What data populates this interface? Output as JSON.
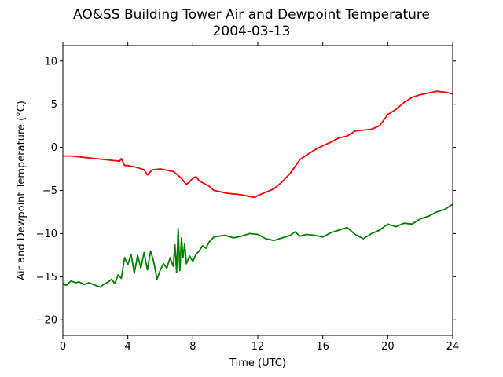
{
  "chart_data": {
    "type": "line",
    "title": "AO&SS Building Tower Air and Dewpoint Temperature",
    "subtitle": "2004-03-13",
    "xlabel": "Time (UTC)",
    "ylabel": "Air and Dewpoint Temperature (°C)",
    "xlim": [
      0,
      24
    ],
    "ylim": [
      -21.8,
      11.8
    ],
    "xticks": [
      0,
      4,
      8,
      12,
      16,
      20,
      24
    ],
    "xtick_labels": [
      "0",
      "4",
      "8",
      "12",
      "16",
      "20",
      "24"
    ],
    "yticks": [
      10,
      5,
      0,
      -5,
      -10,
      -15,
      -20
    ],
    "ytick_labels": [
      "10",
      "5",
      "0",
      "−5",
      "−10",
      "−15",
      "−20"
    ],
    "grid": false,
    "legend": "none",
    "series": [
      {
        "color": "#ff0000",
        "x": [
          0,
          0.5,
          1,
          1.5,
          2,
          2.5,
          3,
          3.5,
          3.6,
          3.8,
          4,
          4.5,
          5,
          5.2,
          5.5,
          6,
          6.5,
          6.8,
          7,
          7.3,
          7.6,
          7.8,
          8,
          8.2,
          8.4,
          8.7,
          9,
          9.3,
          9.6,
          10,
          10.5,
          11,
          11.5,
          11.8,
          12,
          12.5,
          13,
          13.5,
          14,
          14.3,
          14.6,
          15,
          15.5,
          16,
          16.5,
          16.8,
          17,
          17.5,
          18,
          18.5,
          19,
          19.5,
          20,
          20.5,
          21,
          21.5,
          22,
          22.5,
          23,
          23.5,
          24
        ],
        "y": [
          -1.0,
          -1.0,
          -1.1,
          -1.2,
          -1.3,
          -1.4,
          -1.5,
          -1.6,
          -1.3,
          -2.1,
          -2.1,
          -2.3,
          -2.6,
          -3.2,
          -2.6,
          -2.5,
          -2.7,
          -2.8,
          -3.1,
          -3.6,
          -4.3,
          -4.0,
          -3.6,
          -3.4,
          -3.9,
          -4.2,
          -4.5,
          -5.0,
          -5.1,
          -5.3,
          -5.4,
          -5.5,
          -5.7,
          -5.8,
          -5.6,
          -5.2,
          -4.8,
          -4.0,
          -3.0,
          -2.2,
          -1.4,
          -0.9,
          -0.3,
          0.2,
          0.6,
          0.9,
          1.1,
          1.3,
          1.9,
          2.0,
          2.1,
          2.5,
          3.8,
          4.4,
          5.2,
          5.8,
          6.1,
          6.3,
          6.5,
          6.4,
          6.2
        ]
      },
      {
        "color": "#008000",
        "x": [
          0,
          0.2,
          0.5,
          0.8,
          1,
          1.3,
          1.6,
          2,
          2.3,
          2.5,
          2.8,
          3,
          3.2,
          3.4,
          3.6,
          3.8,
          4,
          4.2,
          4.4,
          4.6,
          4.8,
          5,
          5.2,
          5.4,
          5.6,
          5.8,
          6,
          6.2,
          6.4,
          6.6,
          6.8,
          6.9,
          7,
          7.1,
          7.2,
          7.3,
          7.4,
          7.5,
          7.6,
          7.8,
          8,
          8.2,
          8.4,
          8.6,
          8.8,
          9,
          9.3,
          9.6,
          10,
          10.5,
          11,
          11.5,
          12,
          12.5,
          13,
          13.5,
          14,
          14.3,
          14.6,
          15,
          15.5,
          16,
          16.5,
          17,
          17.5,
          18,
          18.5,
          19,
          19.5,
          20,
          20.5,
          21,
          21.5,
          22,
          22.5,
          23,
          23.5,
          24
        ],
        "y": [
          -15.8,
          -16.0,
          -15.5,
          -15.7,
          -15.6,
          -15.9,
          -15.7,
          -16.0,
          -16.2,
          -15.9,
          -15.6,
          -15.3,
          -15.8,
          -14.8,
          -15.2,
          -12.8,
          -13.6,
          -12.4,
          -14.6,
          -12.5,
          -14.0,
          -12.2,
          -14.2,
          -12.0,
          -13.3,
          -15.3,
          -14.2,
          -13.5,
          -14.0,
          -12.8,
          -13.8,
          -11.3,
          -14.5,
          -9.4,
          -14.3,
          -10.5,
          -12.8,
          -11.2,
          -13.5,
          -12.6,
          -13.2,
          -12.4,
          -12.0,
          -11.4,
          -11.7,
          -11.0,
          -10.4,
          -10.3,
          -10.2,
          -10.5,
          -10.3,
          -10.0,
          -10.1,
          -10.6,
          -10.8,
          -10.5,
          -10.2,
          -9.8,
          -10.3,
          -10.1,
          -10.2,
          -10.4,
          -9.9,
          -9.6,
          -9.3,
          -10.1,
          -10.6,
          -10.0,
          -9.6,
          -8.9,
          -9.2,
          -8.8,
          -8.9,
          -8.3,
          -8.0,
          -7.5,
          -7.2,
          -6.6
        ]
      }
    ]
  }
}
